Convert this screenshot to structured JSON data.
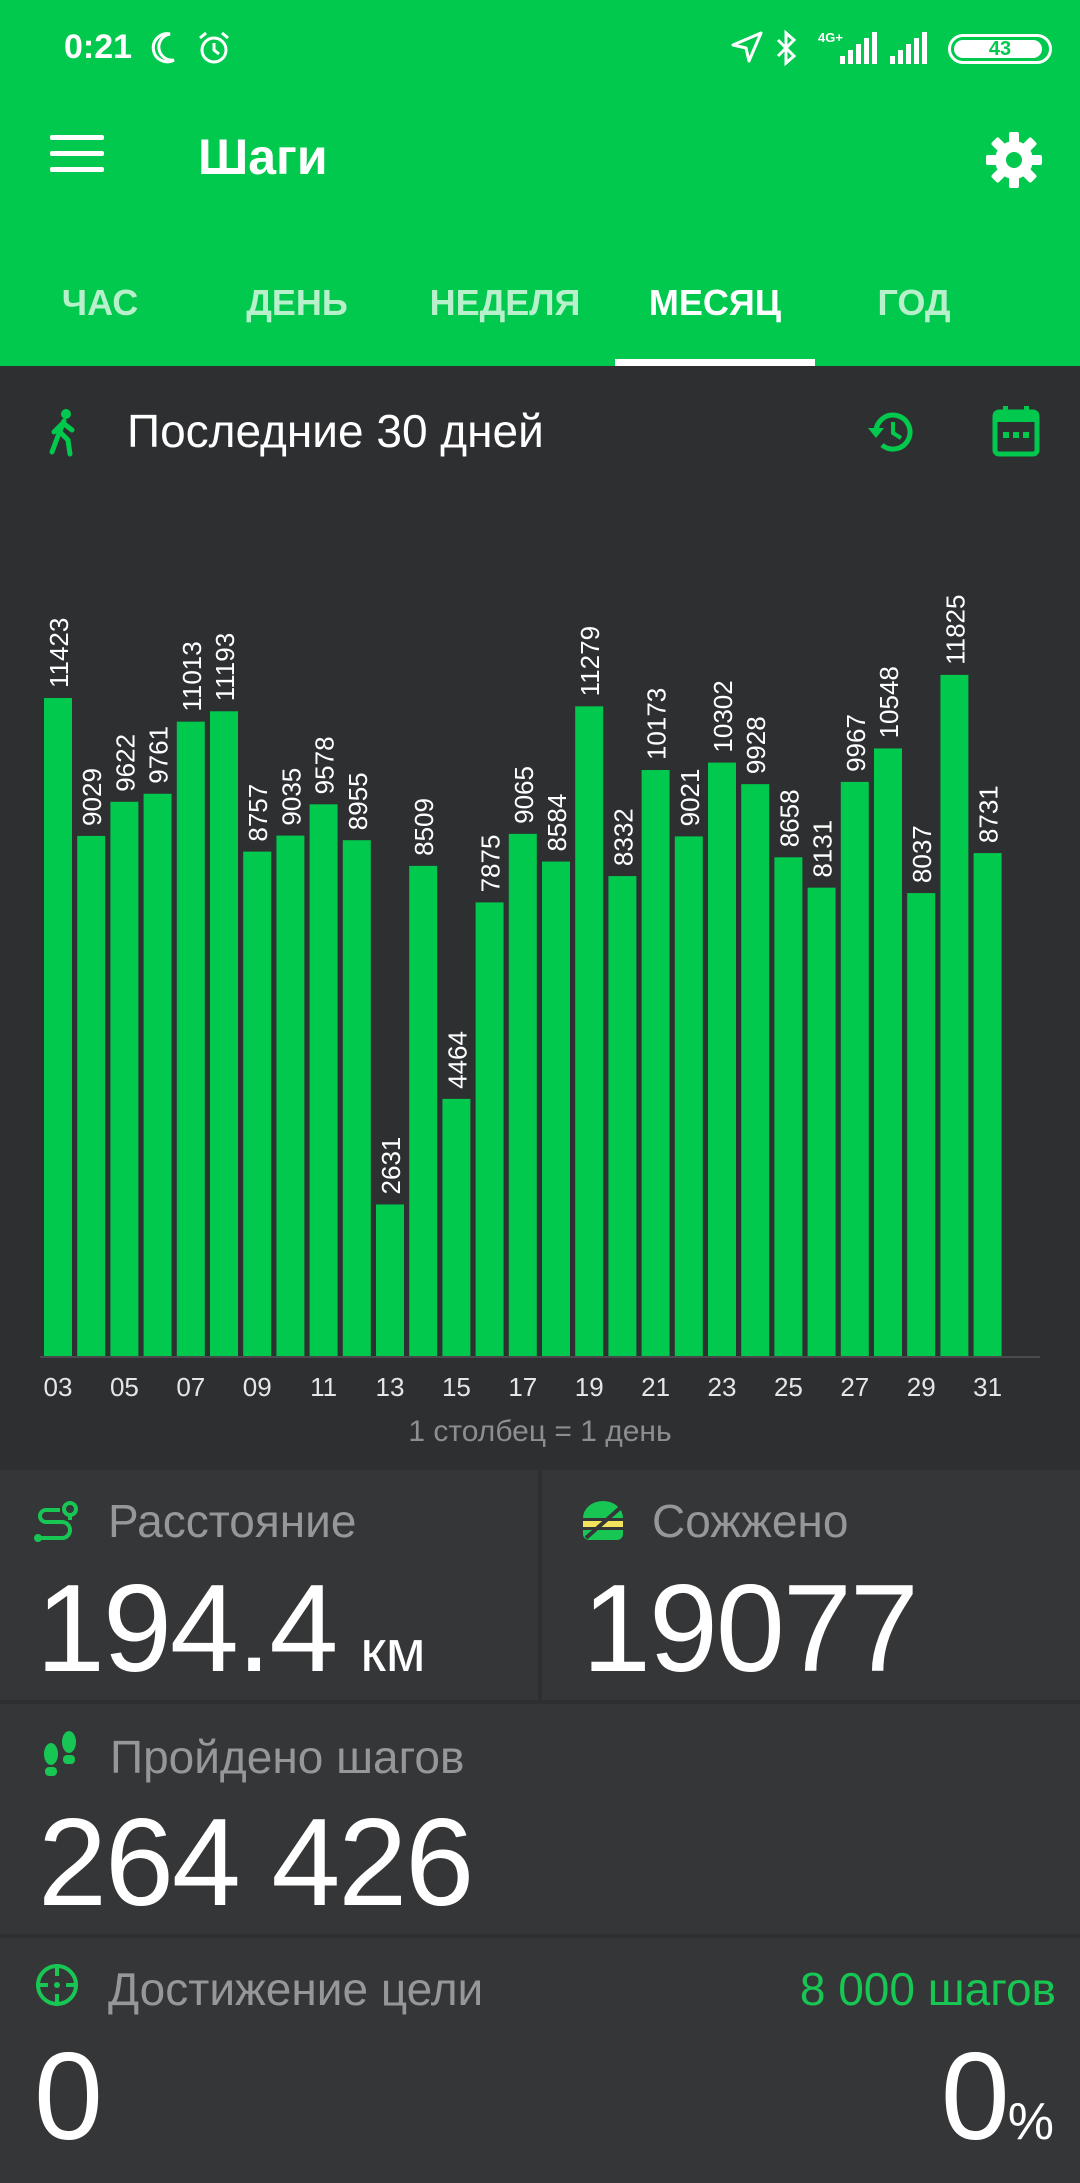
{
  "status": {
    "time": "0:21",
    "network": "4G+",
    "battery": "43",
    "icons": [
      "moon-icon",
      "alarm-icon",
      "location-icon",
      "bluetooth-icon",
      "signal-icon",
      "signal-icon",
      "battery-icon"
    ]
  },
  "toolbar": {
    "title": "Шаги",
    "menu_icon": "hamburger-menu-icon",
    "settings_icon": "gear-icon"
  },
  "tabs": [
    {
      "label": "ЧАС",
      "active": false
    },
    {
      "label": "ДЕНЬ",
      "active": false
    },
    {
      "label": "НЕДЕЛЯ",
      "active": false
    },
    {
      "label": "МЕСЯЦ",
      "active": true
    },
    {
      "label": "ГОД",
      "active": false
    }
  ],
  "period": {
    "title": "Последние 30 дней",
    "icons": [
      "walking-person-icon",
      "history-icon",
      "calendar-icon"
    ]
  },
  "chart_data": {
    "type": "bar",
    "categories": [
      "03",
      "04",
      "05",
      "06",
      "07",
      "08",
      "09",
      "10",
      "11",
      "12",
      "13",
      "14",
      "15",
      "16",
      "17",
      "18",
      "19",
      "20",
      "21",
      "22",
      "23",
      "24",
      "25",
      "26",
      "27",
      "28",
      "29",
      "30",
      "31"
    ],
    "tick_labels": [
      "03",
      "05",
      "07",
      "09",
      "11",
      "13",
      "15",
      "17",
      "19",
      "21",
      "23",
      "25",
      "27",
      "29",
      "31"
    ],
    "values": [
      11423,
      9029,
      9622,
      9761,
      11013,
      11193,
      8757,
      9035,
      9578,
      8955,
      2631,
      8509,
      4464,
      7875,
      9065,
      8584,
      11279,
      8332,
      10173,
      9021,
      10302,
      9928,
      8658,
      8131,
      9967,
      10548,
      8037,
      11825,
      8731
    ],
    "note": "1 столбец = 1 день",
    "ylim": [
      0,
      12500
    ],
    "bar_color": "#00c94d",
    "grid": false
  },
  "stats": {
    "distance": {
      "label": "Расстояние",
      "value": "194.4",
      "unit": "км",
      "icon": "route-icon"
    },
    "burned": {
      "label": "Сожжено",
      "value": "19077",
      "icon": "burger-icon"
    },
    "steps": {
      "label": "Пройдено шагов",
      "value": "264 426",
      "icon": "footprints-icon"
    },
    "goal": {
      "label": "Достижение цели",
      "value": "0",
      "target": "8 000 шагов",
      "percent": "0",
      "percent_sign": "%",
      "icon": "target-icon"
    }
  },
  "colors": {
    "accent": "#00c94d",
    "background": "#2e2f31",
    "card": "#353638",
    "muted_text": "#96979a"
  }
}
